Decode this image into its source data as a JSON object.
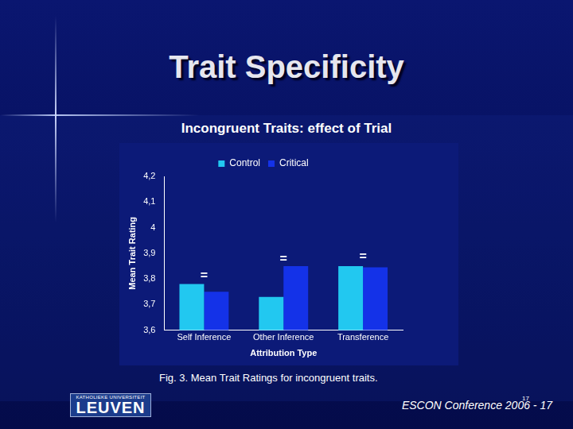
{
  "chart_data": {
    "type": "bar",
    "title": "Incongruent Traits: effect of Trial",
    "x_label": "Attribution Type",
    "y_label": "Mean Trait Rating",
    "categories": [
      "Self Inference",
      "Other Inference",
      "Transference"
    ],
    "series": [
      {
        "name": "Control",
        "color": "#22c8f0",
        "values": [
          3.78,
          3.73,
          3.85
        ]
      },
      {
        "name": "Critical",
        "color": "#1432e8",
        "values": [
          3.75,
          3.85,
          3.845
        ]
      }
    ],
    "ylim": [
      3.6,
      4.2
    ],
    "yticks": [
      {
        "value": 3.6,
        "label": "3,6"
      },
      {
        "value": 3.7,
        "label": "3,7"
      },
      {
        "value": 3.8,
        "label": "3,8"
      },
      {
        "value": 3.9,
        "label": "3,9"
      },
      {
        "value": 4.0,
        "label": "4"
      },
      {
        "value": 4.1,
        "label": "4,1"
      },
      {
        "value": 4.2,
        "label": "4,2"
      }
    ],
    "grid": false,
    "legend": "top",
    "annotations": [
      {
        "text": "=",
        "category": "Self Inference",
        "y": 3.81
      },
      {
        "text": "=",
        "category": "Other Inference",
        "y": 3.875
      },
      {
        "text": "=",
        "category": "Transference",
        "y": 3.885
      }
    ]
  },
  "slide": {
    "heading": "Trait Specificity",
    "caption": "Fig. 3. Mean Trait Ratings for incongruent traits.",
    "footer": "ESCON Conference 2006 - 17",
    "slide_number": "17",
    "logo_top": "KATHOLIEKE UNIVERSITEIT",
    "logo_main": "LEUVEN"
  }
}
